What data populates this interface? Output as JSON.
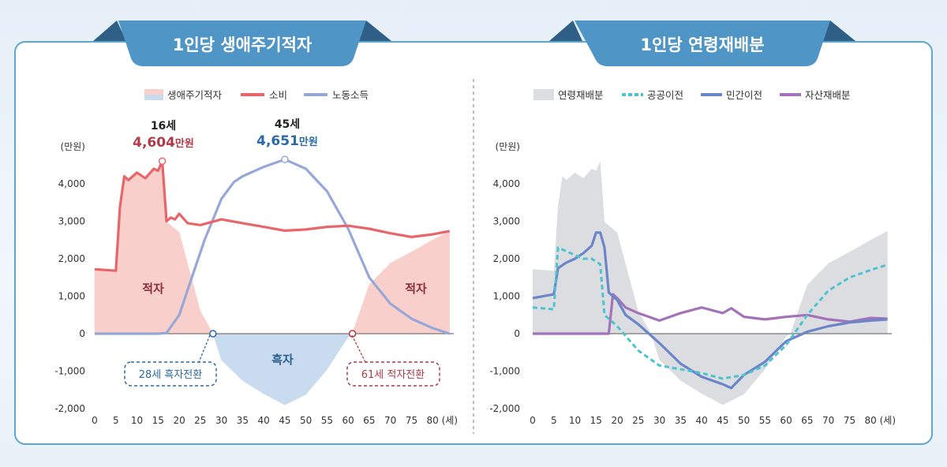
{
  "colors": {
    "banner": "#4f96c6",
    "banner_dark": "#2f5f86",
    "surplus_fill": "#f9cfcb",
    "deficit_fill": "#c9dcef",
    "consumption": "#e8666a",
    "labor_income": "#97a8d8",
    "age_realloc_fill": "#dcdde1",
    "public_transfer": "#4ec3cf",
    "private_transfer": "#6a85c9",
    "asset_realloc": "#a472b8",
    "peak_consumption_text": "#b23a48",
    "peak_income_text": "#2b6aa6",
    "callout_deficit": "#2b6aa6",
    "callout_surplus": "#b23a48"
  },
  "left_panel": {
    "title": "1인당 생애주기적자",
    "legend": [
      "생애주기적자",
      "소비",
      "노동소득"
    ],
    "unit": "(만원)",
    "peak_consumption": {
      "age_label": "16세",
      "value": "4,604",
      "unit": "만원"
    },
    "peak_income": {
      "age_label": "45세",
      "value": "4,651",
      "unit": "만원"
    },
    "area_labels": {
      "left_surplus": "적자",
      "deficit": "흑자",
      "right_surplus": "적자"
    },
    "callout_deficit": "28세 흑자전환",
    "callout_surplus": "61세 적자전환"
  },
  "right_panel": {
    "title": "1인당 연령재배분",
    "legend": [
      "연령재배분",
      "공공이전",
      "민간이전",
      "자산재배분"
    ],
    "unit": "(만원)"
  },
  "axis": {
    "yticks": [
      "4,000",
      "3,000",
      "2,000",
      "1,000",
      "0",
      "-1,000",
      "-2,000"
    ],
    "xticks": [
      "0",
      "5",
      "10",
      "15",
      "20",
      "25",
      "30",
      "35",
      "40",
      "45",
      "50",
      "55",
      "60",
      "65",
      "70",
      "75",
      "80"
    ],
    "x_unit": "(세)"
  },
  "chart_data": [
    {
      "type": "line",
      "title": "1인당 생애주기적자",
      "ylabel": "(만원)",
      "xlabel": "(세)",
      "xlim": [
        0,
        85
      ],
      "ylim": [
        -2000,
        4500
      ],
      "series": [
        {
          "name": "소비",
          "x": [
            0,
            5,
            6,
            7,
            8,
            9,
            10,
            12,
            14,
            15,
            16,
            17,
            18,
            19,
            20,
            22,
            25,
            30,
            35,
            40,
            45,
            50,
            55,
            60,
            65,
            70,
            75,
            80,
            84
          ],
          "y": [
            1720,
            1680,
            3400,
            4200,
            4100,
            4200,
            4300,
            4150,
            4400,
            4350,
            4604,
            3000,
            3100,
            3050,
            3200,
            2950,
            2900,
            3050,
            2950,
            2850,
            2750,
            2780,
            2850,
            2880,
            2800,
            2680,
            2580,
            2650,
            2740
          ]
        },
        {
          "name": "노동소득",
          "x": [
            0,
            15,
            17,
            20,
            23,
            26,
            30,
            33,
            35,
            40,
            45,
            50,
            55,
            60,
            65,
            70,
            75,
            80,
            84
          ],
          "y": [
            0,
            0,
            20,
            500,
            1500,
            2500,
            3600,
            4050,
            4200,
            4450,
            4651,
            4400,
            3800,
            2800,
            1500,
            800,
            400,
            150,
            0
          ]
        },
        {
          "name": "생애주기적자",
          "x": [
            0,
            5,
            6,
            7,
            8,
            9,
            10,
            12,
            14,
            15,
            16,
            17,
            20,
            25,
            28,
            30,
            35,
            40,
            45,
            50,
            55,
            60,
            61,
            65,
            70,
            75,
            80,
            84
          ],
          "y": [
            1720,
            1680,
            3400,
            4200,
            4100,
            4200,
            4300,
            4150,
            4400,
            4350,
            4604,
            2980,
            2700,
            600,
            0,
            -700,
            -1250,
            -1600,
            -1900,
            -1620,
            -950,
            -80,
            0,
            1300,
            1880,
            2180,
            2500,
            2740
          ]
        }
      ]
    },
    {
      "type": "line",
      "title": "1인당 연령재배분",
      "ylabel": "(만원)",
      "xlabel": "(세)",
      "xlim": [
        0,
        85
      ],
      "ylim": [
        -2000,
        4500
      ],
      "series": [
        {
          "name": "연령재배분",
          "x": [
            0,
            5,
            6,
            7,
            8,
            9,
            10,
            12,
            14,
            15,
            16,
            17,
            20,
            25,
            28,
            30,
            35,
            40,
            45,
            50,
            55,
            60,
            61,
            65,
            70,
            75,
            80,
            84
          ],
          "y": [
            1720,
            1680,
            3400,
            4200,
            4100,
            4200,
            4300,
            4150,
            4400,
            4350,
            4604,
            2980,
            2700,
            600,
            0,
            -700,
            -1250,
            -1600,
            -1900,
            -1620,
            -950,
            -80,
            0,
            1300,
            1880,
            2180,
            2500,
            2740
          ]
        },
        {
          "name": "공공이전",
          "x": [
            0,
            5,
            6,
            8,
            10,
            12,
            14,
            16,
            17,
            18,
            20,
            25,
            30,
            35,
            40,
            45,
            50,
            55,
            60,
            65,
            70,
            75,
            80,
            84
          ],
          "y": [
            700,
            650,
            2300,
            2200,
            2100,
            2000,
            2000,
            1850,
            500,
            400,
            200,
            -450,
            -850,
            -950,
            -1050,
            -1200,
            -1100,
            -850,
            -300,
            500,
            1150,
            1500,
            1700,
            1840
          ]
        },
        {
          "name": "민간이전",
          "x": [
            0,
            5,
            6,
            8,
            10,
            12,
            14,
            15,
            16,
            17,
            18,
            20,
            22,
            25,
            30,
            35,
            40,
            45,
            47,
            50,
            55,
            60,
            65,
            70,
            75,
            80,
            84
          ],
          "y": [
            950,
            1050,
            1750,
            1900,
            2000,
            2150,
            2350,
            2700,
            2700,
            2300,
            1100,
            900,
            500,
            250,
            -250,
            -800,
            -1150,
            -1350,
            -1450,
            -1100,
            -750,
            -200,
            50,
            200,
            300,
            350,
            380
          ]
        },
        {
          "name": "자산재배분",
          "x": [
            0,
            15,
            18,
            19,
            20,
            22,
            25,
            30,
            35,
            40,
            45,
            47,
            50,
            55,
            60,
            65,
            70,
            75,
            80,
            84
          ],
          "y": [
            0,
            0,
            0,
            1050,
            950,
            700,
            550,
            350,
            550,
            700,
            550,
            680,
            450,
            380,
            450,
            500,
            380,
            320,
            420,
            400
          ]
        }
      ]
    }
  ]
}
